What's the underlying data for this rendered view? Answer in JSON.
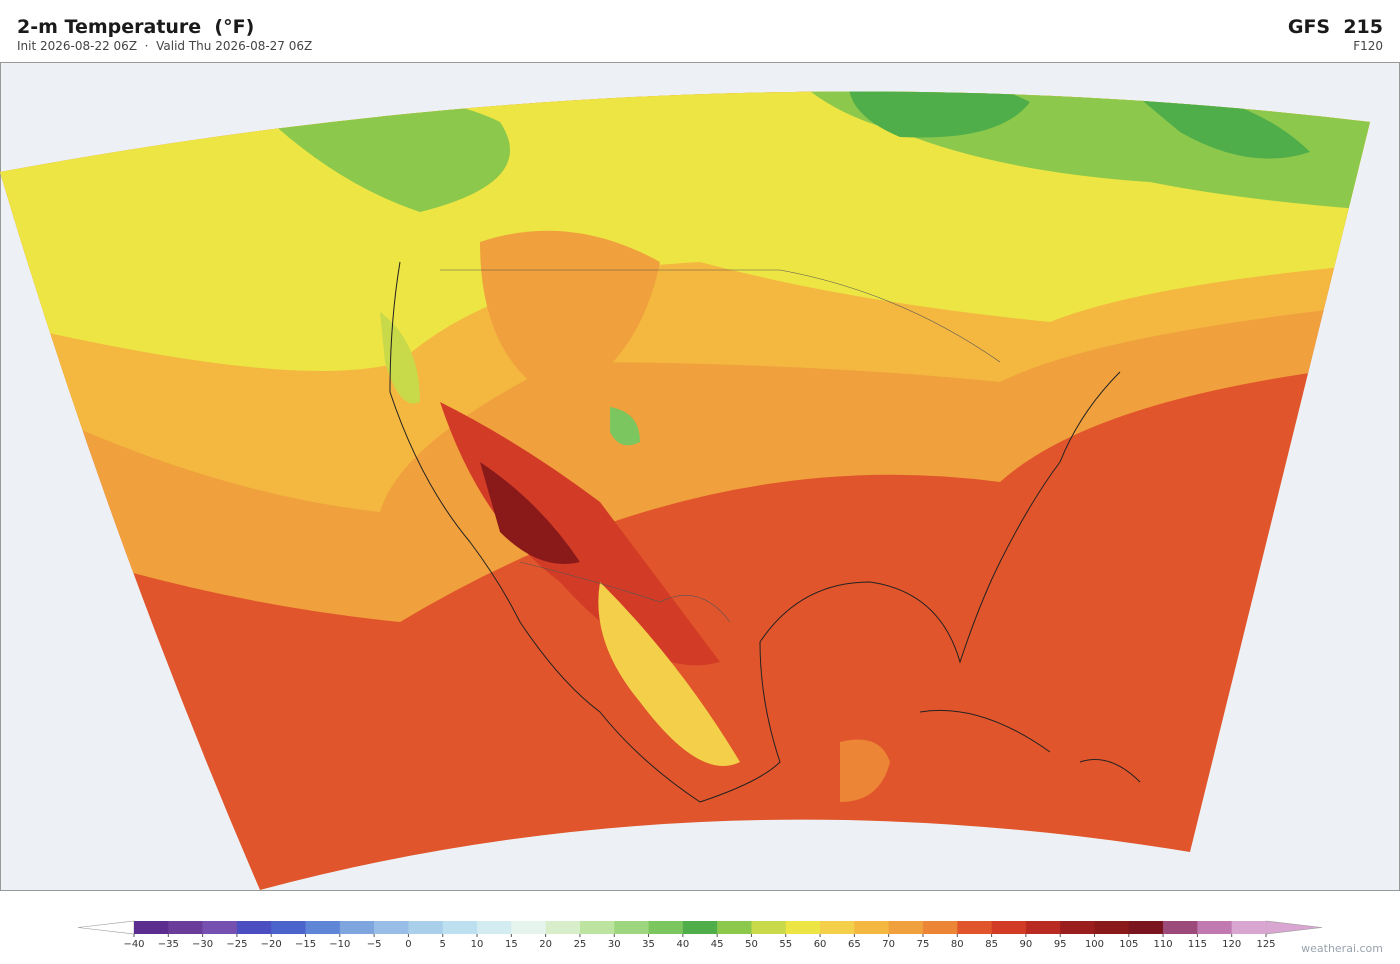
{
  "header": {
    "title": "2-m Temperature  (°F)",
    "subtitle": "Init 2026-08-22 06Z  ·  Valid Thu 2026-08-27 06Z",
    "model": "GFS  215",
    "forecast_hour": "F120"
  },
  "colorbar": {
    "ticks": [
      {
        "value": -40,
        "label": "−40"
      },
      {
        "value": -35,
        "label": "−35"
      },
      {
        "value": -30,
        "label": "−30"
      },
      {
        "value": -25,
        "label": "−25"
      },
      {
        "value": -20,
        "label": "−20"
      },
      {
        "value": -15,
        "label": "−15"
      },
      {
        "value": -10,
        "label": "−10"
      },
      {
        "value": -5,
        "label": "−5"
      },
      0,
      5,
      10,
      15,
      20,
      25,
      30,
      35,
      40,
      45,
      50,
      55,
      60,
      65,
      70,
      75,
      80,
      85,
      90,
      95,
      100,
      105,
      110,
      115,
      120,
      125
    ],
    "colors": [
      "#5b2d8e",
      "#6a3d9a",
      "#7550b0",
      "#4a4ec0",
      "#4a64cc",
      "#5f85d6",
      "#7ea5de",
      "#98bde6",
      "#a9cfea",
      "#bde0f0",
      "#d3ecf2",
      "#e6f4ee",
      "#d8eecb",
      "#bce4a0",
      "#9ed67f",
      "#7cc65f",
      "#4fae4a",
      "#8cc84c",
      "#c8d94a",
      "#ece544",
      "#f4cf4a",
      "#f4b840",
      "#f0a03c",
      "#ec8535",
      "#e0552b",
      "#d23c26",
      "#b82a22",
      "#9a1e1e",
      "#8a1a1a",
      "#7a1520",
      "#9c4a7a",
      "#c07ab0",
      "#d8a6d0"
    ],
    "under_color": "#ffffff",
    "over_color": "#d8a6d0"
  },
  "footer": {
    "credit": "weatherai.com"
  }
}
